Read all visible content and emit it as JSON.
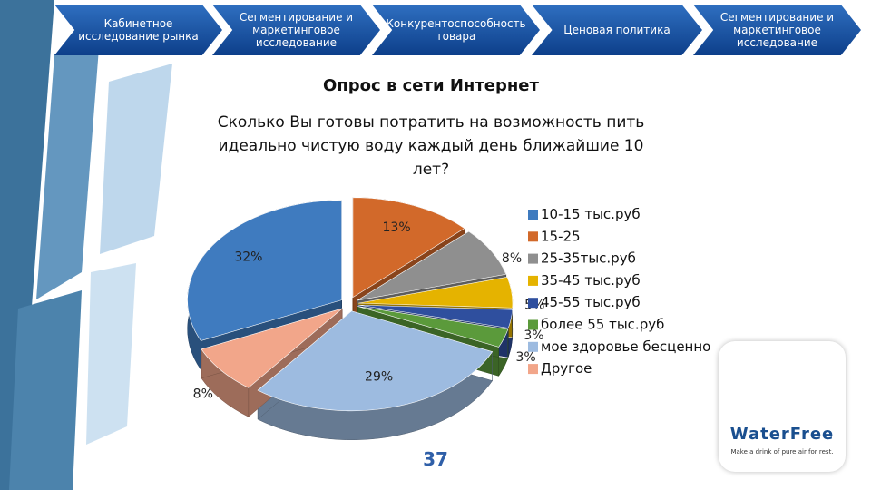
{
  "nav": [
    "Кабинетное исследование рынка",
    "Сегментирование и маркетинговое исследование",
    "Конкурентоспособность товара",
    "Ценовая политика",
    "Сегментирование и маркетинговое исследование"
  ],
  "heading": "Опрос в сети Интернет",
  "page_number": "37",
  "logo": {
    "name": "WaterFree",
    "tagline": "Make a drink of pure air for rest."
  },
  "chart_data": {
    "type": "pie",
    "title": "Сколько Вы готовы потратить на возможность пить идеально чистую воду каждый день ближайшие 10 лет?",
    "categories": [
      "10-15 тыс.руб",
      "15-25",
      "25-35тыс.руб",
      "35-45 тыс.руб",
      "45-55 тыс.руб",
      "более 55 тыс.руб",
      "мое здоровье бесценно",
      "Другое"
    ],
    "values": [
      32,
      13,
      8,
      5,
      3,
      3,
      29,
      8
    ],
    "value_labels": [
      "32%",
      "13%",
      "8%",
      "5%",
      "3%",
      "3%",
      "29%",
      "8%"
    ],
    "colors": [
      "#3f7bbf",
      "#d2692a",
      "#8f8f8f",
      "#e5b300",
      "#2f4f9e",
      "#5b9a3b",
      "#9dbbe0",
      "#f2a68a"
    ],
    "legend": "right"
  }
}
